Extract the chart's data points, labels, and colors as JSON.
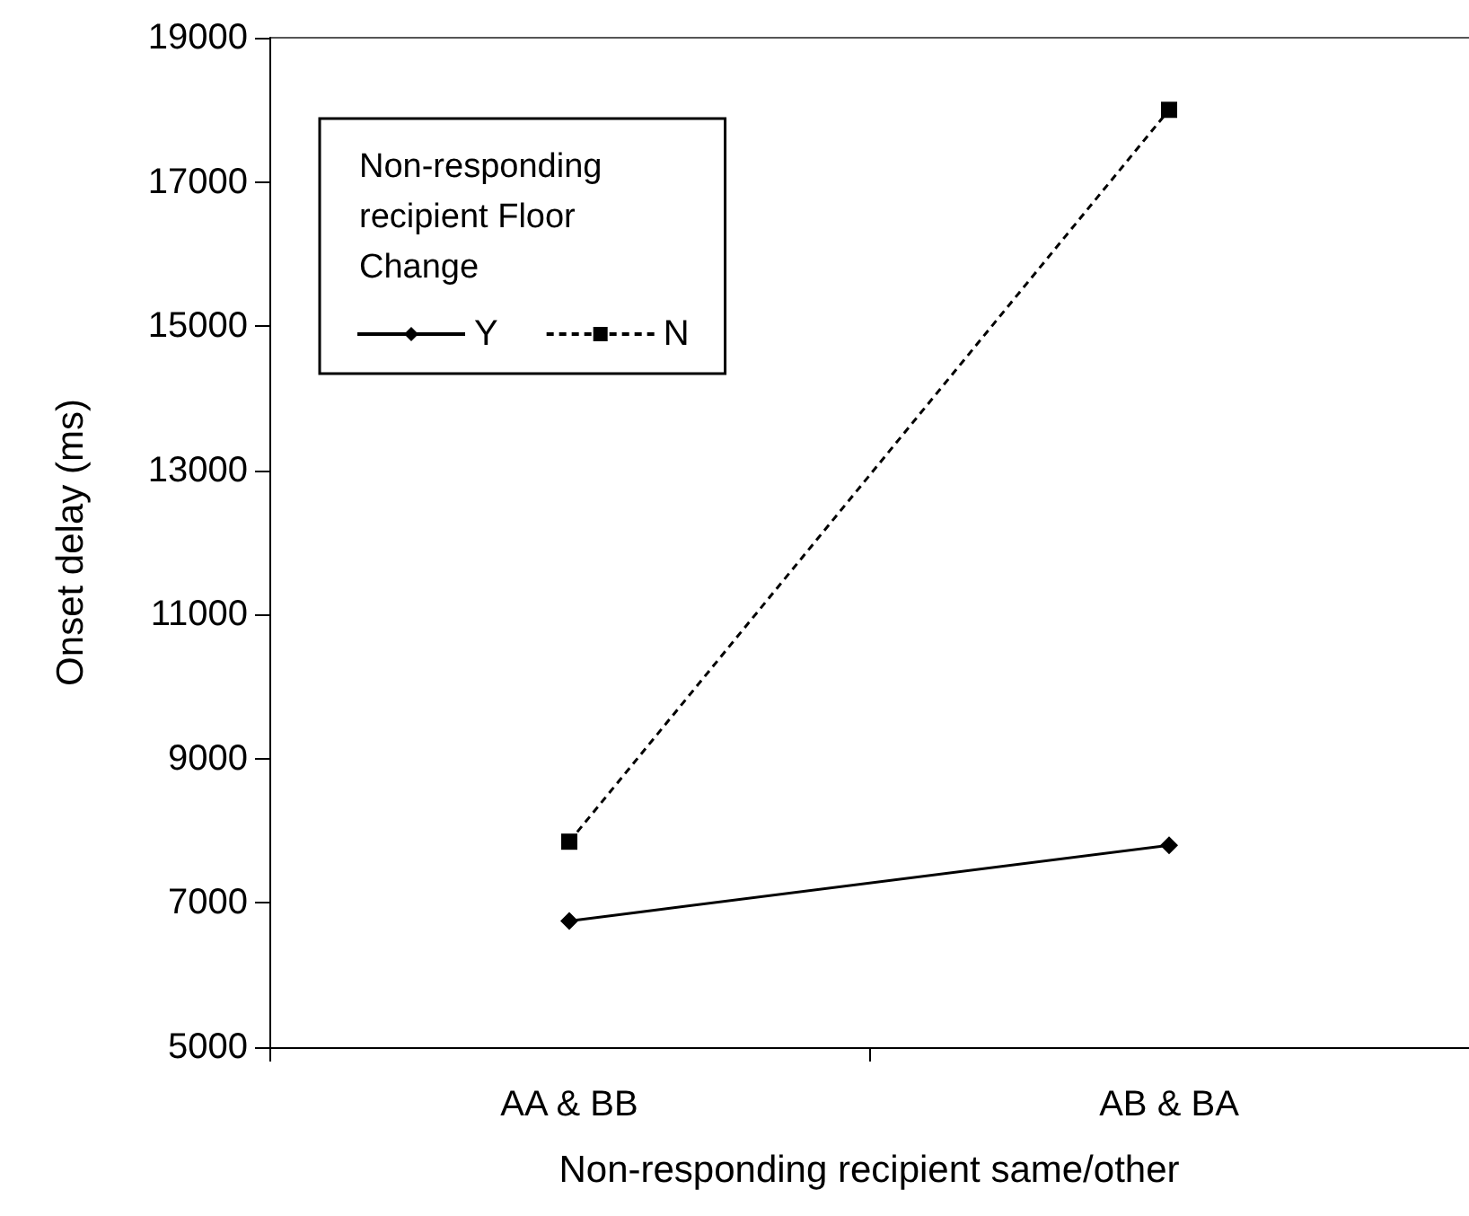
{
  "chart_data": {
    "type": "line",
    "xlabel": "Non-responding recipient same/other",
    "ylabel": "Onset delay (ms)",
    "legend_title": "Non-responding recipient Floor Change",
    "categories": [
      "AA & BB",
      "AB & BA"
    ],
    "series": [
      {
        "name": "Y",
        "color": "#000000",
        "values": [
          6750,
          7800
        ],
        "marker": "diamond",
        "line_style": "solid"
      },
      {
        "name": "N",
        "color": "#000000",
        "values": [
          7850,
          18000
        ],
        "marker": "square",
        "line_style": "dashed"
      }
    ],
    "ylim": [
      5000,
      19000
    ],
    "yticks": [
      5000,
      7000,
      9000,
      11000,
      13000,
      15000,
      17000,
      19000
    ],
    "grid": false,
    "legend": "top left"
  }
}
